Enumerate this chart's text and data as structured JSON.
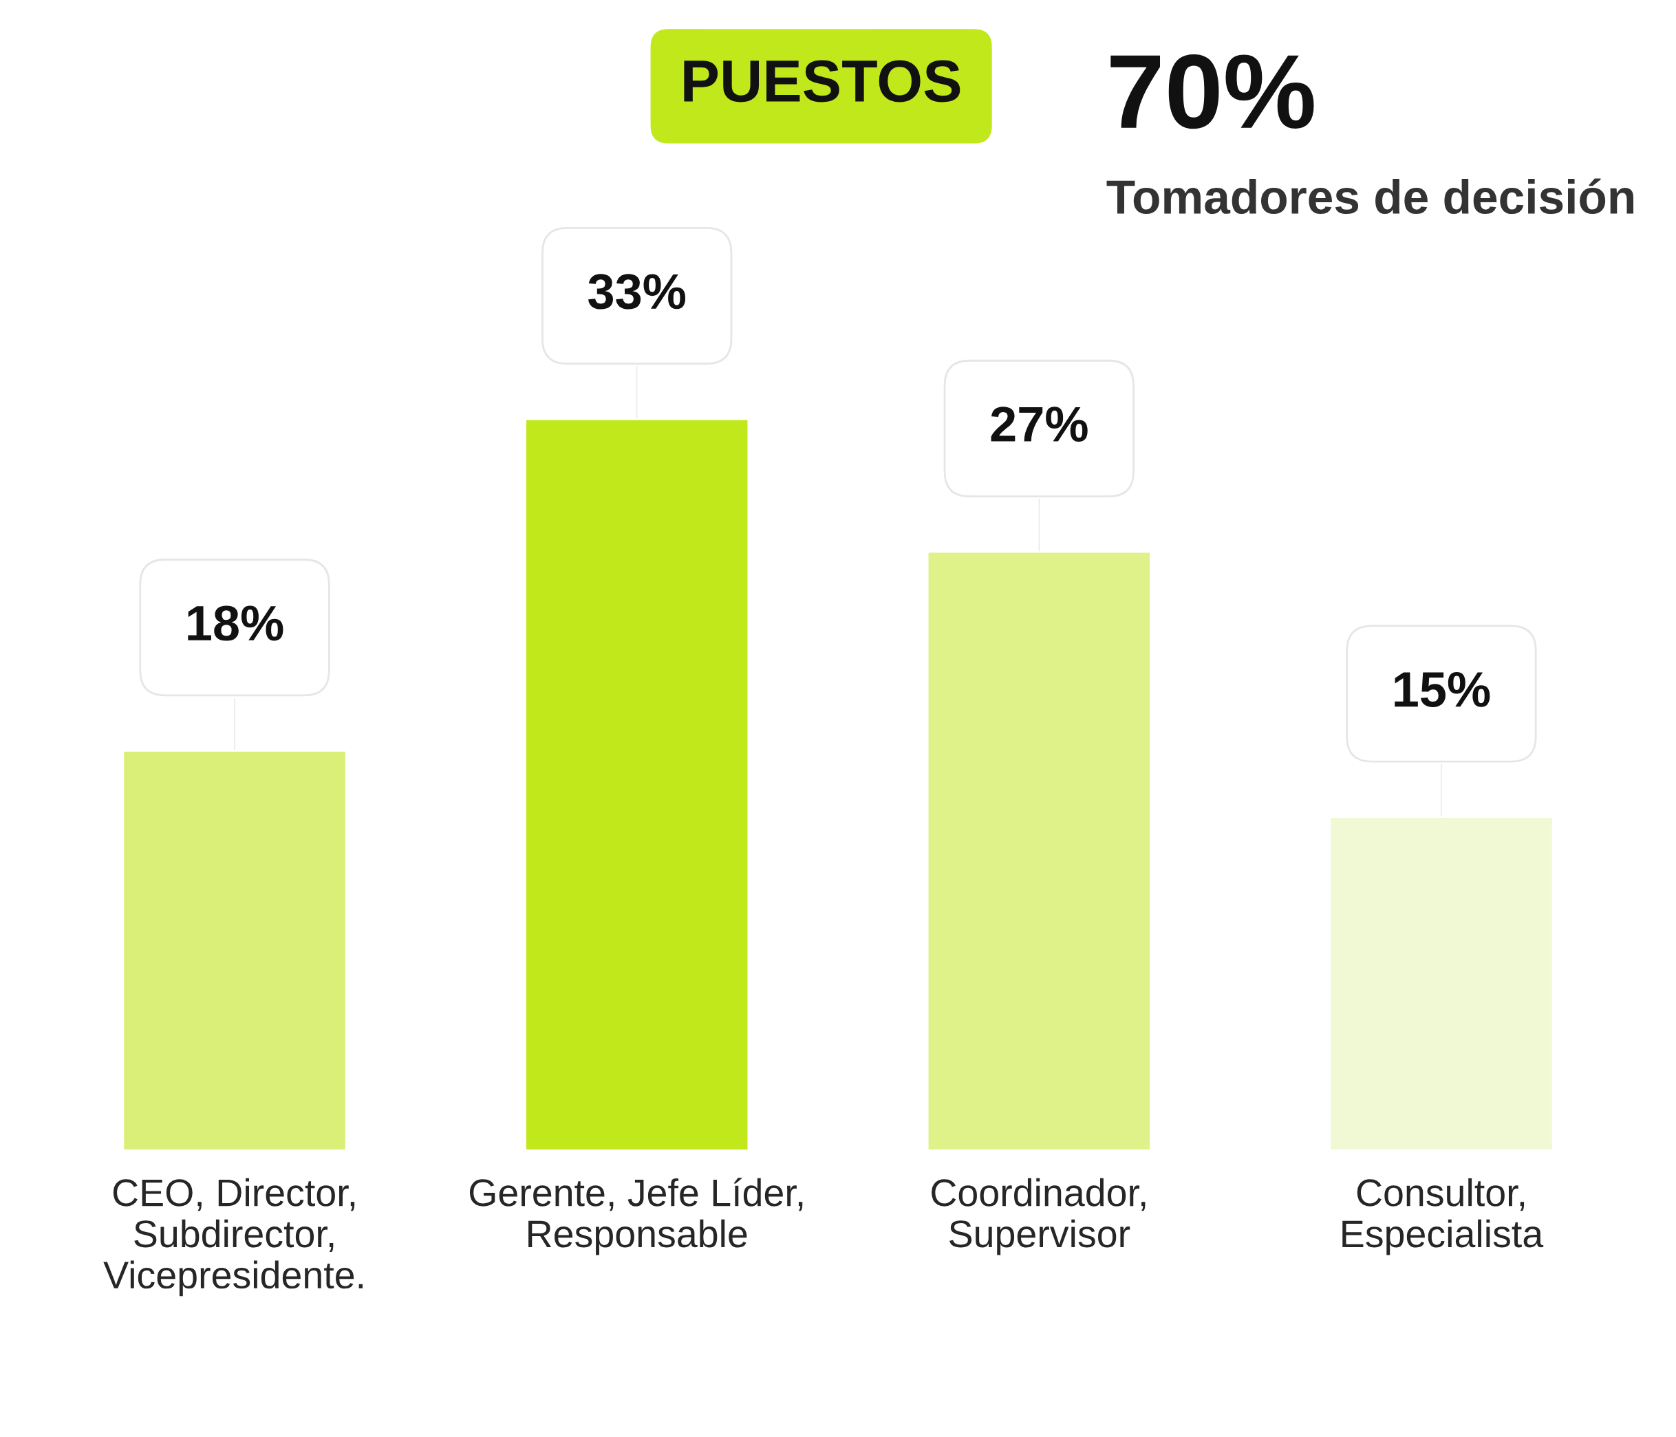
{
  "chart_data": {
    "type": "bar",
    "title": "PUESTOS",
    "categories": [
      "CEO, Director,\nSubdirector,\nVicepresidente.",
      "Gerente, Jefe Líder,\nResponsable",
      "Coordinador,\nSupervisor",
      "Consultor,\nEspecialista"
    ],
    "values": [
      18,
      33,
      27,
      15
    ],
    "colors": [
      "#d9ef78",
      "#c0e81a",
      "#dff28a",
      "#f1f9d4"
    ],
    "value_labels": [
      "18%",
      "33%",
      "27%",
      "15%"
    ],
    "annotations": [
      "70%",
      "Tomadores de decisión"
    ],
    "grid": false,
    "legend": false
  }
}
